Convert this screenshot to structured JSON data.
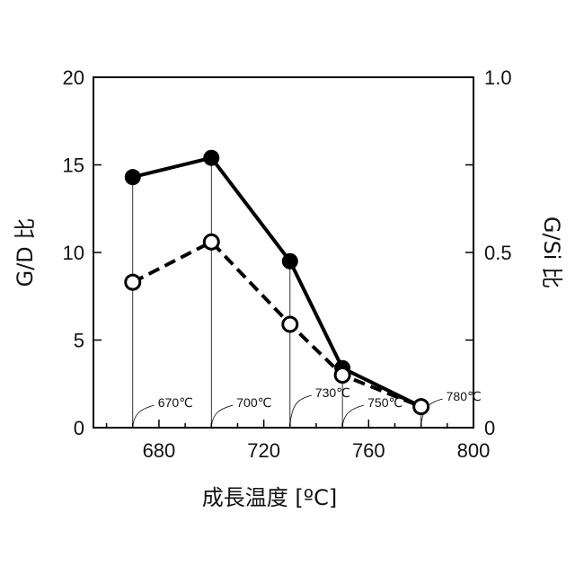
{
  "chart_data": {
    "type": "line",
    "xlabel": "成長温度 [ºC]",
    "ylabel_left": "G/D 比",
    "ylabel_right": "G/Si 比",
    "xlim": [
      655,
      800
    ],
    "ylim_left": [
      0,
      20
    ],
    "ylim_right": [
      0,
      1.0
    ],
    "xticks": [
      680,
      720,
      760,
      800
    ],
    "yticks_left": [
      0,
      5,
      10,
      15,
      20
    ],
    "yticks_right": [
      {
        "value": 0,
        "label": "0"
      },
      {
        "value": 0.5,
        "label": "0.5"
      },
      {
        "value": 1.0,
        "label": "1.0"
      }
    ],
    "grid": false,
    "series": [
      {
        "axis": "left",
        "style": "solid",
        "marker": "filled-circle",
        "color": "#000000",
        "x": [
          670,
          700,
          730,
          750,
          780
        ],
        "y": [
          14.3,
          15.4,
          9.5,
          3.4,
          1.2
        ]
      },
      {
        "axis": "right",
        "style": "dashed",
        "marker": "open-circle",
        "color": "#000000",
        "x": [
          670,
          700,
          730,
          750,
          780
        ],
        "y": [
          0.415,
          0.53,
          0.295,
          0.15,
          0.06
        ]
      }
    ],
    "annotations": [
      {
        "x": 670,
        "label": "670℃"
      },
      {
        "x": 700,
        "label": "700℃"
      },
      {
        "x": 730,
        "label": "730℃"
      },
      {
        "x": 750,
        "label": "750℃"
      },
      {
        "x": 780,
        "label": "780℃"
      }
    ]
  }
}
